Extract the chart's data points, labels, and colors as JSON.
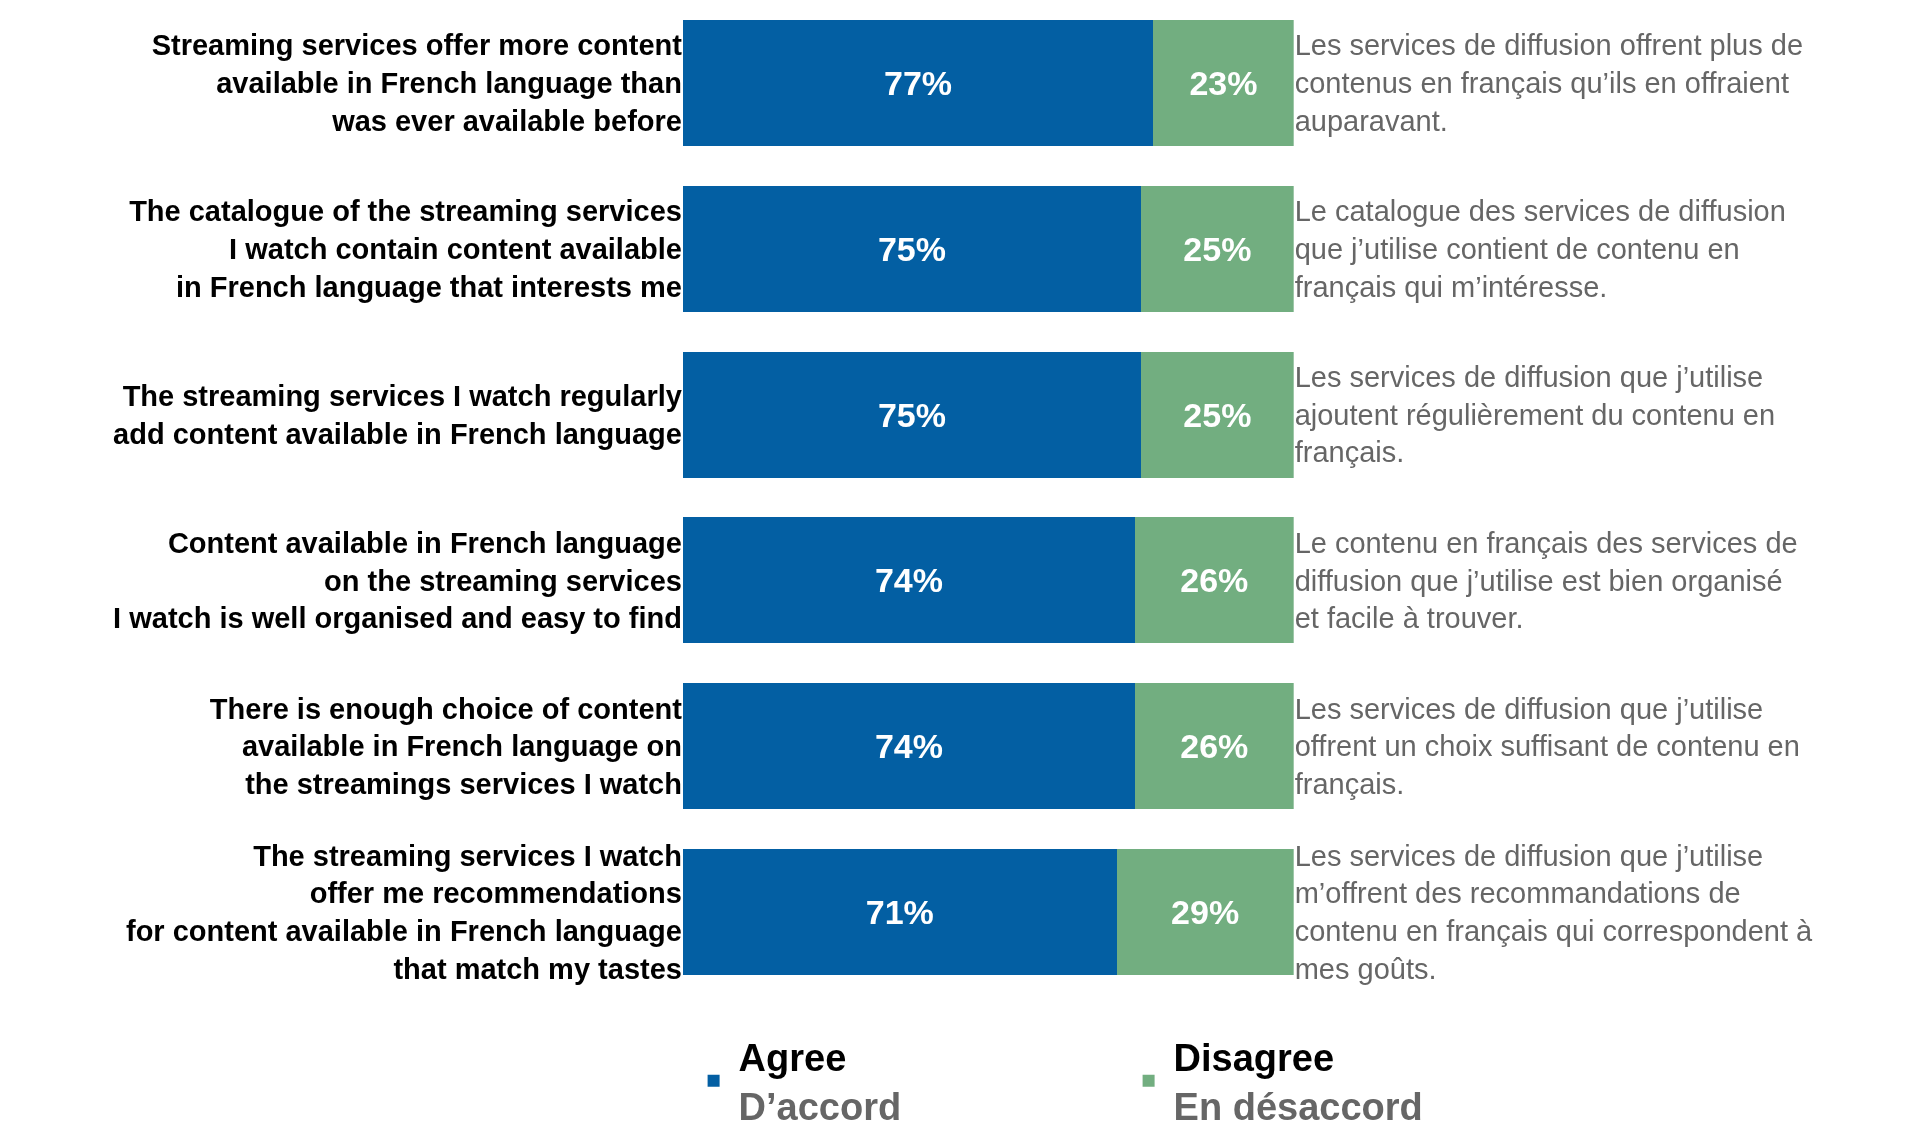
{
  "chart_data": {
    "type": "bar",
    "orientation": "horizontal",
    "stacked": true,
    "tick_labels": "y",
    "xlim": [
      0,
      100
    ],
    "legend": "bottom",
    "categories": [
      "Streaming services offer more content\navailable in French language than\nwas ever available before",
      "The catalogue of the streaming services\nI watch contain content available\nin French language that interests me",
      "The streaming services I watch regularly\nadd content available in French language",
      "Content available in French language\non the streaming services\nI watch is well organised and easy to find",
      "There is enough choice of content\navailable in French language on\nthe streamings services I watch",
      "The streaming services I watch\noffer me recommendations\nfor content available in French language\nthat match my tastes"
    ],
    "y2_categories": [
      "Les services de diffusion offrent plus de\ncontenus en français qu’ils en offraient\nauparavant.",
      "Le catalogue des services de diffusion\nque j’utilise contient de contenu en\nfrançais qui m’intéresse.",
      "Les services de diffusion que j’utilise\najoutent régulièrement du contenu en\nfrançais.",
      "Le contenu en français des services de\ndiffusion que j’utilise est bien organisé\net facile à trouver.",
      "Les services de diffusion que j’utilise\noffrent un choix suffisant de contenu en\nfrançais.",
      "Les services de diffusion que j’utilise\nm’offrent des recommandations de\ncontenu en français qui correspondent à\nmes goûts."
    ],
    "series": [
      {
        "name": "Agree\nD’accord",
        "color": "#035fa3",
        "values": [
          77,
          75,
          75,
          74,
          74,
          71
        ],
        "value_labels": [
          "77%",
          "75%",
          "75%",
          "74%",
          "74%",
          "71%"
        ]
      },
      {
        "name": "Disagree\nEn désaccord",
        "color": "#72ae80",
        "values": [
          23,
          25,
          25,
          26,
          26,
          29
        ],
        "value_labels": [
          "23%",
          "25%",
          "25%",
          "26%",
          "26%",
          "29%"
        ]
      }
    ]
  }
}
